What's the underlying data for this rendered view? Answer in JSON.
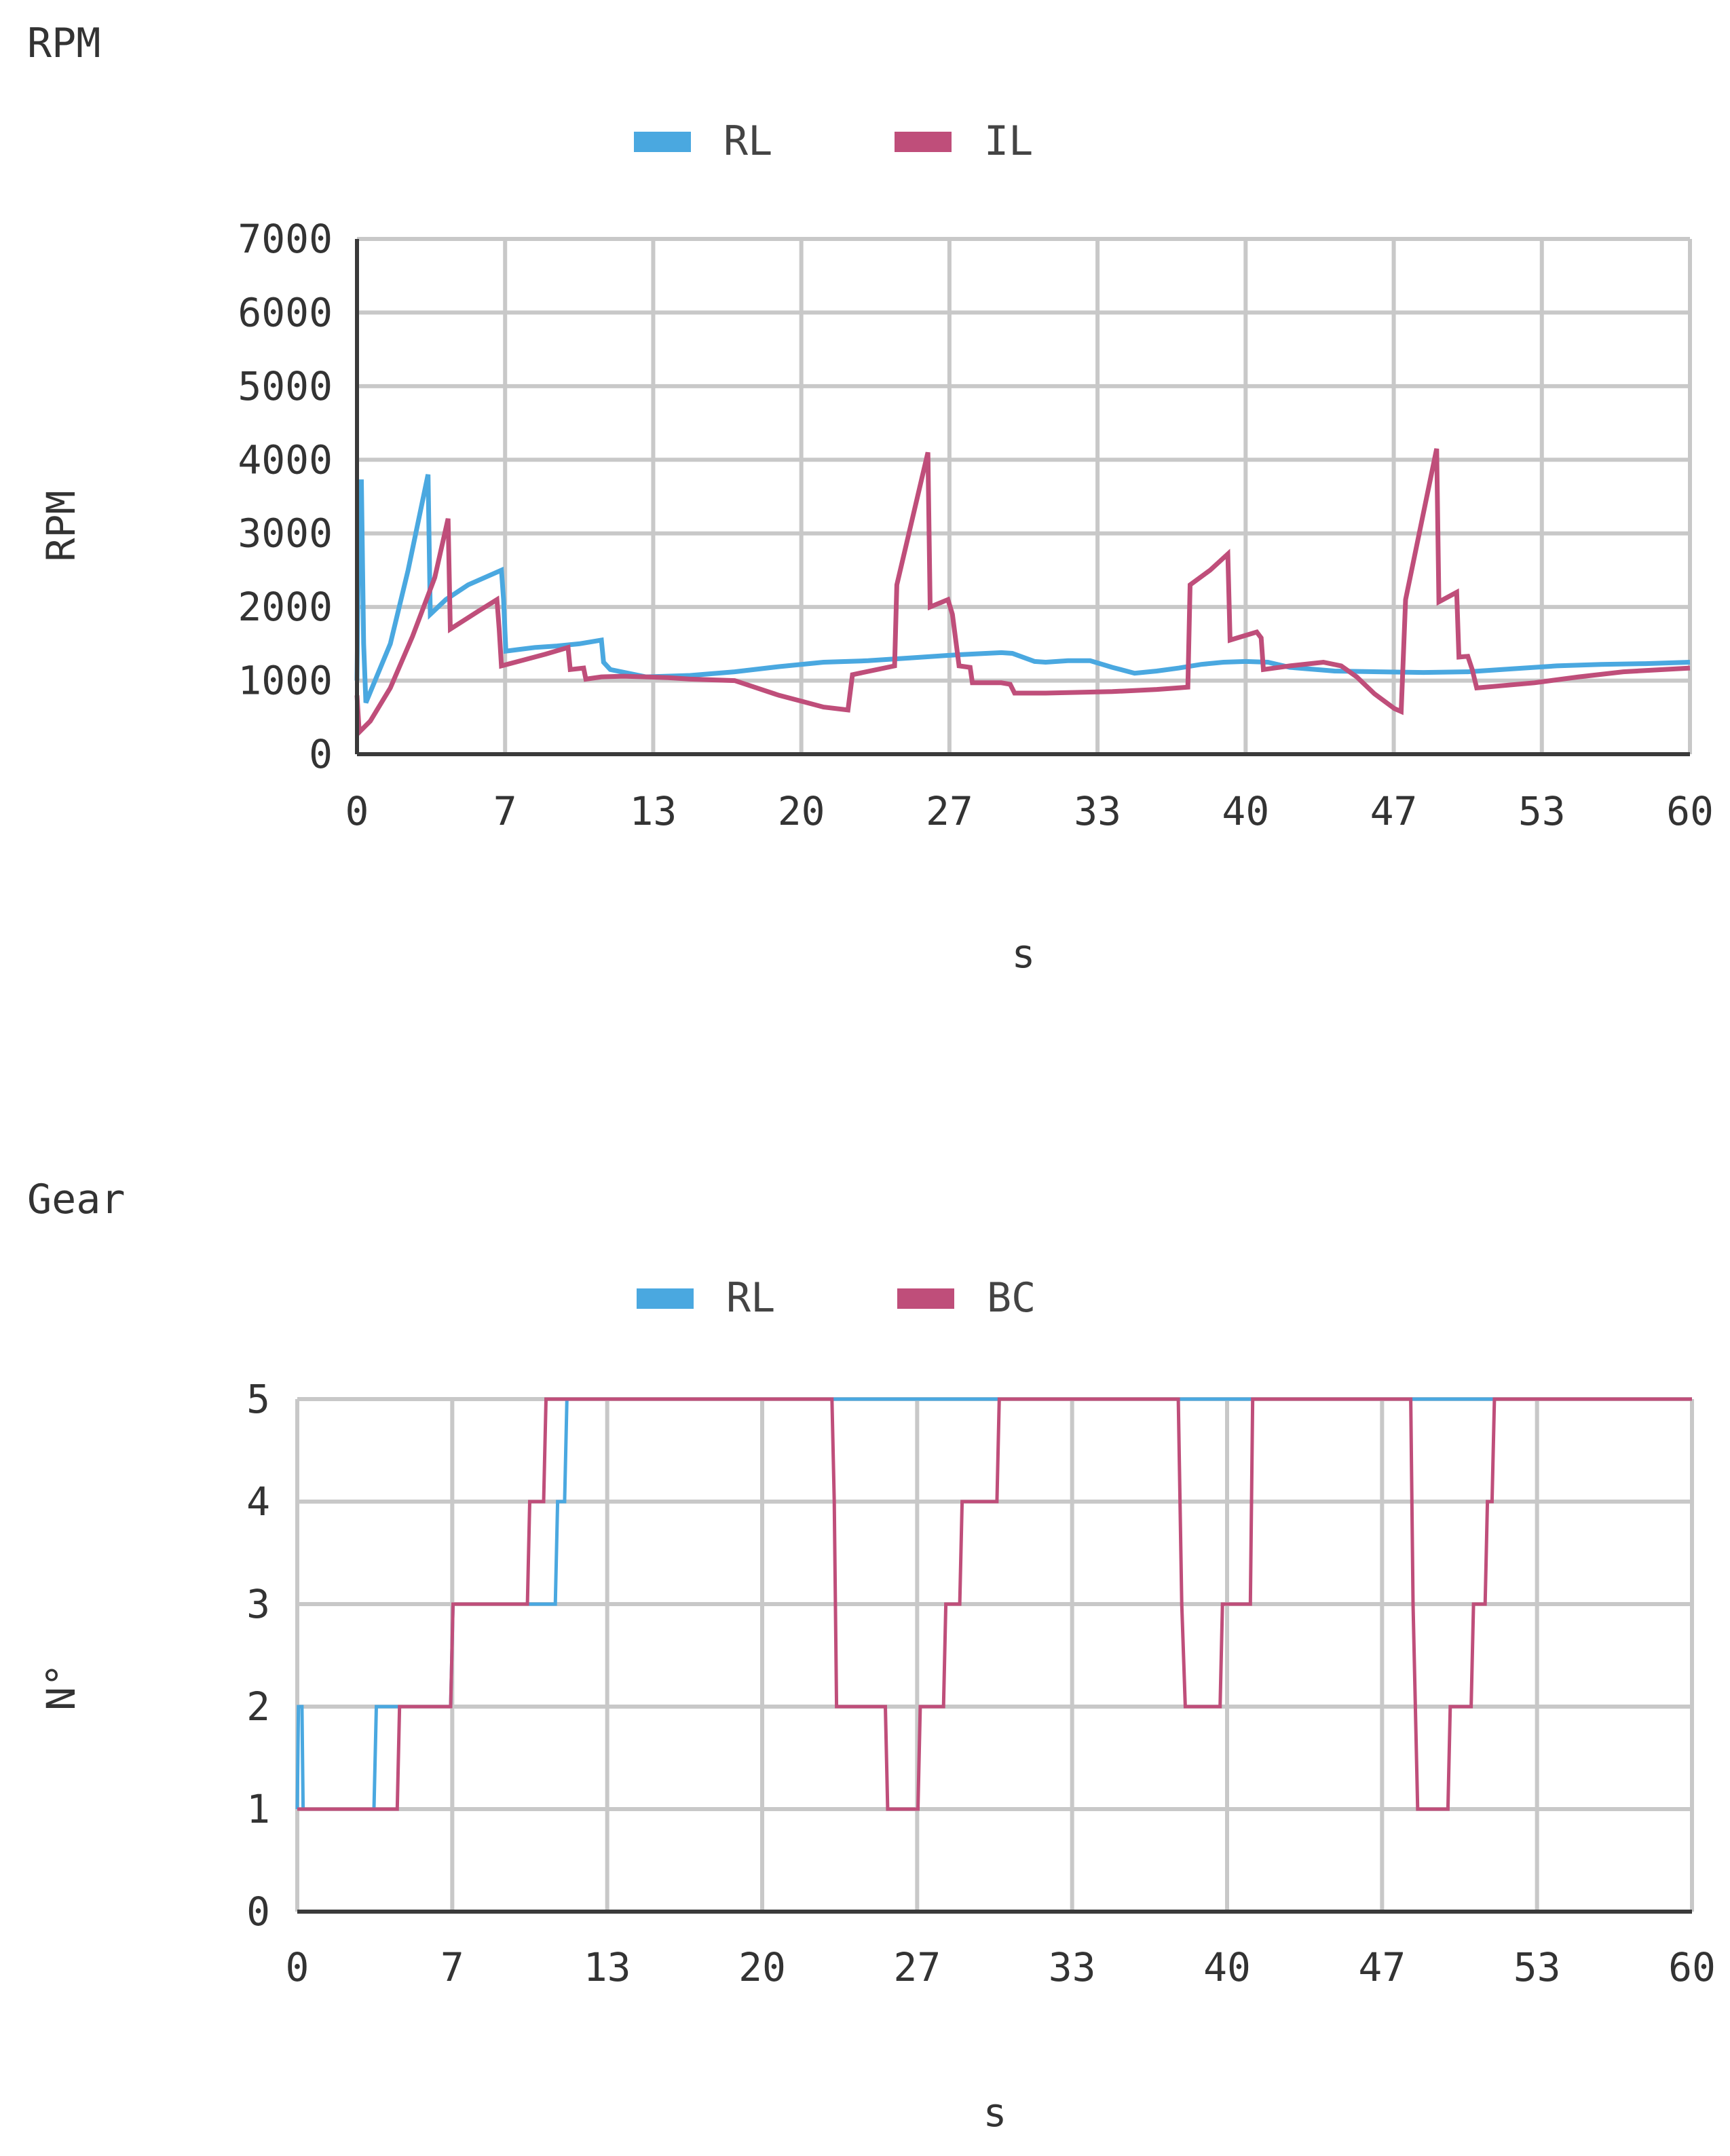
{
  "chart_data": [
    {
      "id": "rpm",
      "type": "line",
      "title": "RPM",
      "xlabel": "s",
      "ylabel": "RPM",
      "xlim": [
        0,
        60
      ],
      "ylim": [
        0,
        7000
      ],
      "x_ticks": [
        "0",
        "7",
        "13",
        "20",
        "27",
        "33",
        "40",
        "47",
        "53",
        "60"
      ],
      "y_ticks": [
        "0",
        "1000",
        "2000",
        "3000",
        "4000",
        "5000",
        "6000",
        "7000"
      ],
      "grid": true,
      "legend_position": "top-center",
      "series": [
        {
          "name": "RL",
          "color": "#4aa8e0",
          "points": [
            [
              0,
              1000
            ],
            [
              0.1,
              3700
            ],
            [
              0.2,
              3700
            ],
            [
              0.3,
              1500
            ],
            [
              0.4,
              700
            ],
            [
              1.5,
              1500
            ],
            [
              2.3,
              2500
            ],
            [
              3.2,
              3800
            ],
            [
              3.3,
              1900
            ],
            [
              4,
              2100
            ],
            [
              5,
              2300
            ],
            [
              6.5,
              2500
            ],
            [
              6.6,
              2100
            ],
            [
              6.7,
              1400
            ],
            [
              8,
              1450
            ],
            [
              9,
              1470
            ],
            [
              10,
              1500
            ],
            [
              11,
              1550
            ],
            [
              11.1,
              1250
            ],
            [
              11.4,
              1150
            ],
            [
              13,
              1050
            ],
            [
              15,
              1070
            ],
            [
              17,
              1120
            ],
            [
              19,
              1190
            ],
            [
              21,
              1250
            ],
            [
              23,
              1270
            ],
            [
              25,
              1310
            ],
            [
              27,
              1350
            ],
            [
              29,
              1380
            ],
            [
              29.5,
              1370
            ],
            [
              30.5,
              1260
            ],
            [
              31,
              1250
            ],
            [
              32,
              1270
            ],
            [
              33,
              1270
            ],
            [
              34,
              1180
            ],
            [
              35,
              1100
            ],
            [
              36,
              1130
            ],
            [
              37,
              1170
            ],
            [
              38,
              1220
            ],
            [
              39,
              1250
            ],
            [
              40,
              1260
            ],
            [
              41,
              1250
            ],
            [
              42,
              1180
            ],
            [
              44,
              1130
            ],
            [
              46,
              1120
            ],
            [
              48,
              1110
            ],
            [
              50,
              1120
            ],
            [
              52,
              1160
            ],
            [
              54,
              1200
            ],
            [
              56,
              1220
            ],
            [
              58,
              1230
            ],
            [
              60,
              1250
            ]
          ]
        },
        {
          "name": "IL",
          "color": "#bf4e7a",
          "points": [
            [
              0,
              800
            ],
            [
              0.1,
              300
            ],
            [
              0.6,
              450
            ],
            [
              1.5,
              900
            ],
            [
              2.5,
              1600
            ],
            [
              3.5,
              2400
            ],
            [
              4.1,
              3200
            ],
            [
              4.2,
              1700
            ],
            [
              5.5,
              1950
            ],
            [
              6.3,
              2100
            ],
            [
              6.4,
              1700
            ],
            [
              6.5,
              1200
            ],
            [
              7.5,
              1280
            ],
            [
              8.5,
              1360
            ],
            [
              9.5,
              1450
            ],
            [
              9.6,
              1150
            ],
            [
              10.2,
              1170
            ],
            [
              10.3,
              1020
            ],
            [
              11,
              1050
            ],
            [
              12,
              1060
            ],
            [
              13,
              1050
            ],
            [
              14,
              1040
            ],
            [
              15,
              1020
            ],
            [
              16,
              1010
            ],
            [
              17,
              1000
            ],
            [
              18,
              900
            ],
            [
              19,
              800
            ],
            [
              20,
              720
            ],
            [
              21,
              640
            ],
            [
              22.1,
              600
            ],
            [
              22.3,
              1080
            ],
            [
              24.2,
              1200
            ],
            [
              24.3,
              2300
            ],
            [
              25.7,
              4100
            ],
            [
              25.8,
              2000
            ],
            [
              26.6,
              2100
            ],
            [
              26.8,
              1900
            ],
            [
              27.1,
              1200
            ],
            [
              27.6,
              1180
            ],
            [
              27.7,
              970
            ],
            [
              29,
              970
            ],
            [
              29.4,
              950
            ],
            [
              29.6,
              830
            ],
            [
              31,
              830
            ],
            [
              34,
              850
            ],
            [
              36,
              880
            ],
            [
              37.4,
              910
            ],
            [
              37.5,
              2300
            ],
            [
              38.4,
              2500
            ],
            [
              39.2,
              2720
            ],
            [
              39.3,
              1550
            ],
            [
              40.5,
              1660
            ],
            [
              40.7,
              1580
            ],
            [
              40.8,
              1150
            ],
            [
              42,
              1200
            ],
            [
              43.5,
              1250
            ],
            [
              44.3,
              1200
            ],
            [
              45,
              1050
            ],
            [
              45.8,
              820
            ],
            [
              46.7,
              620
            ],
            [
              47,
              580
            ],
            [
              47.2,
              2100
            ],
            [
              48.6,
              4150
            ],
            [
              48.7,
              2070
            ],
            [
              49.5,
              2200
            ],
            [
              49.6,
              1320
            ],
            [
              50,
              1330
            ],
            [
              50.2,
              1150
            ],
            [
              50.4,
              900
            ],
            [
              51.5,
              930
            ],
            [
              53,
              970
            ],
            [
              55,
              1050
            ],
            [
              57,
              1120
            ],
            [
              60,
              1170
            ]
          ]
        }
      ]
    },
    {
      "id": "gear",
      "type": "line",
      "title": "Gear",
      "xlabel": "s",
      "ylabel": "N°",
      "xlim": [
        0,
        60
      ],
      "ylim": [
        0,
        5
      ],
      "x_ticks": [
        "0",
        "7",
        "13",
        "20",
        "27",
        "33",
        "40",
        "47",
        "53",
        "60"
      ],
      "y_ticks": [
        "0",
        "1",
        "2",
        "3",
        "4",
        "5"
      ],
      "grid": true,
      "legend_position": "top-center",
      "series": [
        {
          "name": "RL",
          "color": "#4aa8e0",
          "points": [
            [
              0,
              1
            ],
            [
              0.05,
              2
            ],
            [
              0.2,
              2
            ],
            [
              0.25,
              1
            ],
            [
              3.3,
              1
            ],
            [
              3.4,
              2
            ],
            [
              6.6,
              2
            ],
            [
              6.7,
              3
            ],
            [
              11.1,
              3
            ],
            [
              11.2,
              4
            ],
            [
              11.5,
              4
            ],
            [
              11.6,
              5
            ],
            [
              60,
              5
            ]
          ]
        },
        {
          "name": "BC",
          "color": "#bf4e7a",
          "points": [
            [
              0,
              1
            ],
            [
              4.3,
              1
            ],
            [
              4.4,
              2
            ],
            [
              6.6,
              2
            ],
            [
              6.7,
              3
            ],
            [
              9.9,
              3
            ],
            [
              10,
              4
            ],
            [
              10.6,
              4
            ],
            [
              10.7,
              5
            ],
            [
              23,
              5
            ],
            [
              23.1,
              4
            ],
            [
              23.2,
              2
            ],
            [
              25.3,
              2
            ],
            [
              25.4,
              1
            ],
            [
              26.7,
              1
            ],
            [
              26.8,
              2
            ],
            [
              27.8,
              2
            ],
            [
              27.9,
              3
            ],
            [
              28.5,
              3
            ],
            [
              28.6,
              4
            ],
            [
              30.1,
              4
            ],
            [
              30.2,
              5
            ],
            [
              37.9,
              5
            ],
            [
              38.05,
              3
            ],
            [
              38.2,
              2
            ],
            [
              39.7,
              2
            ],
            [
              39.8,
              3
            ],
            [
              41,
              3
            ],
            [
              41.1,
              5
            ],
            [
              47.9,
              5
            ],
            [
              48,
              3
            ],
            [
              48.2,
              1
            ],
            [
              49.5,
              1
            ],
            [
              49.6,
              2
            ],
            [
              50.5,
              2
            ],
            [
              50.6,
              3
            ],
            [
              51.1,
              3
            ],
            [
              51.2,
              4
            ],
            [
              51.4,
              4
            ],
            [
              51.5,
              5
            ],
            [
              60,
              5
            ]
          ]
        }
      ]
    }
  ]
}
